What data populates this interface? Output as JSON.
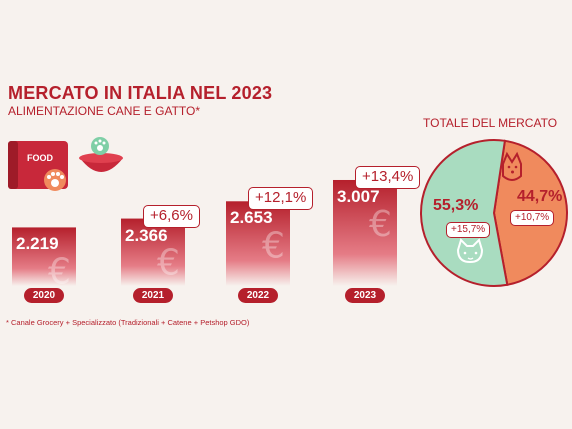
{
  "title": "MERCATO IN ITALIA NEL 2023",
  "subtitle": "ALIMENTAZIONE CANE E GATTO*",
  "footnote": "* Canale Grocery + Specializzato (Tradizionali + Catene + Petshop GDO)",
  "food_label": "FOOD",
  "colors": {
    "brand": "#b5202c",
    "dog_slice": "#f08a5d",
    "cat_slice": "#a9dcc0",
    "background": "#f7f2ee"
  },
  "chart_data": [
    {
      "type": "bar",
      "categories": [
        "2020",
        "2021",
        "2022",
        "2023"
      ],
      "values": [
        2219,
        2366,
        2653,
        3007
      ],
      "value_labels": [
        "2.219",
        "2.366",
        "2.653",
        "3.007"
      ],
      "growth_labels": [
        "",
        "+6,6%",
        "+12,1%",
        "+13,4%"
      ],
      "title": "MERCATO IN ITALIA NEL 2023",
      "currency_icon": "euro-icon"
    },
    {
      "type": "pie",
      "title": "TOTALE DEL MERCATO",
      "slices": [
        {
          "label": "dog",
          "icon": "dog-icon",
          "value": 44.7,
          "value_label": "44,7%",
          "growth": "+10,7%"
        },
        {
          "label": "cat",
          "icon": "cat-icon",
          "value": 55.3,
          "value_label": "55,3%",
          "growth": "+15,7%"
        }
      ]
    }
  ]
}
